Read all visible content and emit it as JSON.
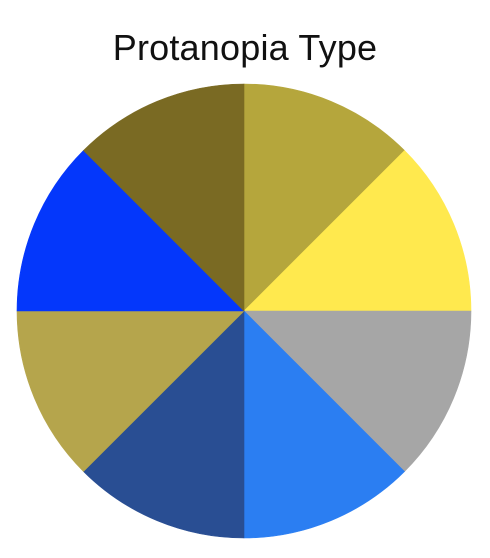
{
  "title": "Protanopia Type",
  "wheel": {
    "segment_count": 8,
    "segments": [
      {
        "name": "top-right",
        "color": "#b5a63c"
      },
      {
        "name": "right-upper",
        "color": "#ffe94e"
      },
      {
        "name": "right-lower",
        "color": "#a6a6a6"
      },
      {
        "name": "bottom-right",
        "color": "#2b7ef2"
      },
      {
        "name": "bottom-left",
        "color": "#294e93"
      },
      {
        "name": "left-lower",
        "color": "#b5a54c"
      },
      {
        "name": "left-upper",
        "color": "#0437fb"
      },
      {
        "name": "top-left",
        "color": "#7a6a23"
      }
    ]
  }
}
